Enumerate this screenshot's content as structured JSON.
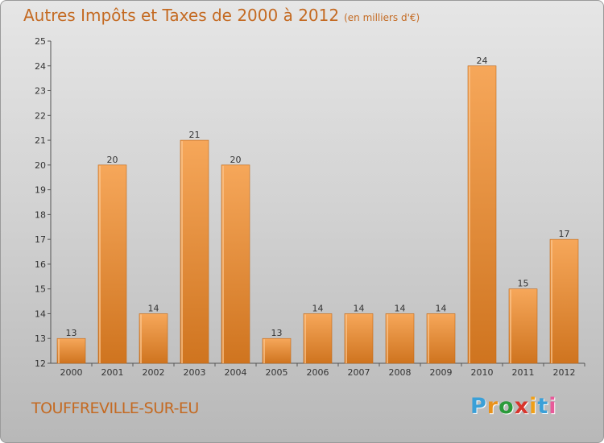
{
  "header": {
    "title": "Autres Impôts et Taxes de 2000 à 2012",
    "unit": "(en milliers d'€)"
  },
  "footer": {
    "commune": "TOUFFREVILLE-SUR-EU",
    "logo": "Proxiti",
    "logo_colors": [
      "#3aa0d8",
      "#e8921c",
      "#2a9a3a",
      "#d8342c",
      "#f0a018",
      "#3aa0d8",
      "#e85a9a"
    ]
  },
  "colors": {
    "bar_light": "#f6a75a",
    "bar_dark": "#cf741f",
    "text_accent": "#c46a22",
    "grid": "#b8b8b8"
  },
  "chart_data": {
    "type": "bar",
    "title": "Autres Impôts et Taxes de 2000 à 2012",
    "subtitle": "(en milliers d'€)",
    "categories": [
      "2000",
      "2001",
      "2002",
      "2003",
      "2004",
      "2005",
      "2006",
      "2007",
      "2008",
      "2009",
      "2010",
      "2011",
      "2012"
    ],
    "values": [
      13,
      20,
      14,
      21,
      20,
      13,
      14,
      14,
      14,
      14,
      24,
      15,
      17
    ],
    "xlabel": "",
    "ylabel": "",
    "ylim": [
      12,
      25
    ],
    "yticks": [
      12,
      13,
      14,
      15,
      16,
      17,
      18,
      19,
      20,
      21,
      22,
      23,
      24,
      25
    ],
    "grid": false,
    "legend": "none"
  }
}
